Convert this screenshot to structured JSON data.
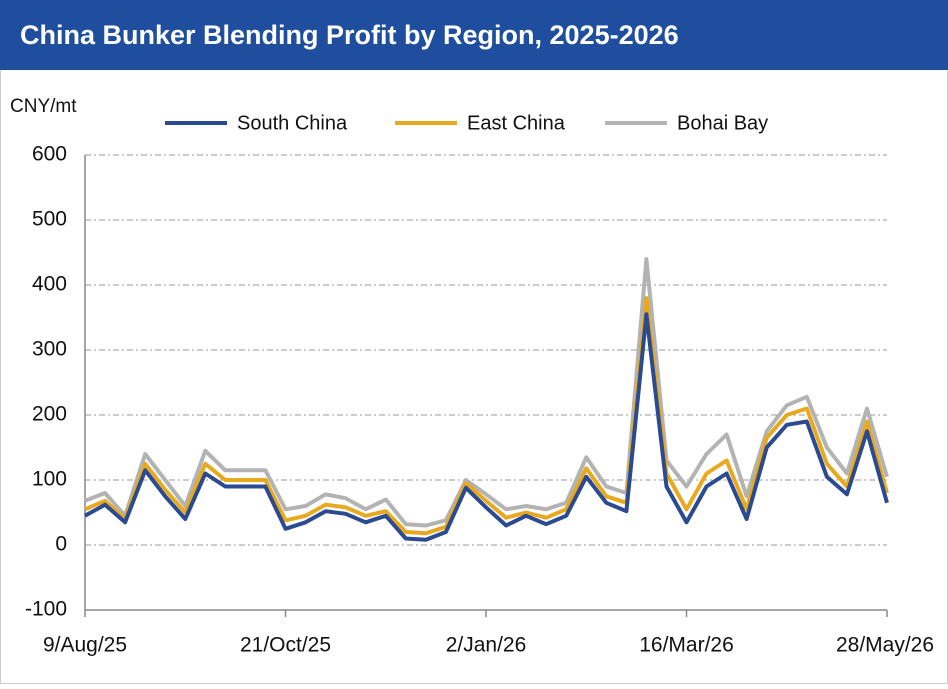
{
  "chart_data": {
    "type": "line",
    "title": "China Bunker Blending Profit by Region, 2025-2026",
    "y_label": "CNY/mt",
    "categories": [
      "9/Aug/25",
      null,
      null,
      null,
      null,
      null,
      null,
      null,
      null,
      null,
      "21/Oct/25",
      null,
      null,
      null,
      null,
      null,
      null,
      null,
      null,
      null,
      "2/Jan/26",
      null,
      null,
      null,
      null,
      null,
      null,
      null,
      null,
      null,
      "16/Mar/26",
      null,
      null,
      null,
      null,
      null,
      null,
      null,
      null,
      null,
      "28/May/26"
    ],
    "series": [
      {
        "name": "South China",
        "color": "#2a4a92",
        "values": [
          45,
          62,
          35,
          115,
          75,
          40,
          110,
          90,
          90,
          90,
          25,
          35,
          52,
          48,
          35,
          45,
          10,
          8,
          20,
          88,
          58,
          30,
          45,
          32,
          45,
          105,
          65,
          52,
          355,
          90,
          35,
          90,
          110,
          40,
          150,
          185,
          190,
          105,
          78,
          175,
          65
        ]
      },
      {
        "name": "East China",
        "color": "#e8a91e",
        "values": [
          55,
          68,
          40,
          125,
          85,
          50,
          125,
          100,
          100,
          100,
          38,
          45,
          62,
          58,
          45,
          52,
          20,
          18,
          28,
          95,
          68,
          42,
          50,
          42,
          55,
          118,
          75,
          65,
          380,
          110,
          55,
          110,
          130,
          55,
          165,
          200,
          210,
          125,
          90,
          190,
          80
        ]
      },
      {
        "name": "Bohai Bay",
        "color": "#b3b3b3",
        "values": [
          68,
          80,
          45,
          140,
          100,
          60,
          145,
          115,
          115,
          115,
          55,
          60,
          78,
          72,
          55,
          70,
          32,
          30,
          38,
          100,
          78,
          55,
          60,
          55,
          65,
          135,
          90,
          80,
          440,
          130,
          90,
          140,
          170,
          75,
          175,
          215,
          228,
          150,
          110,
          210,
          105
        ]
      }
    ],
    "ylim": [
      -100,
      600
    ],
    "yticks": [
      -100,
      0,
      100,
      200,
      300,
      400,
      500,
      600
    ],
    "grid": true,
    "legend": "top"
  }
}
